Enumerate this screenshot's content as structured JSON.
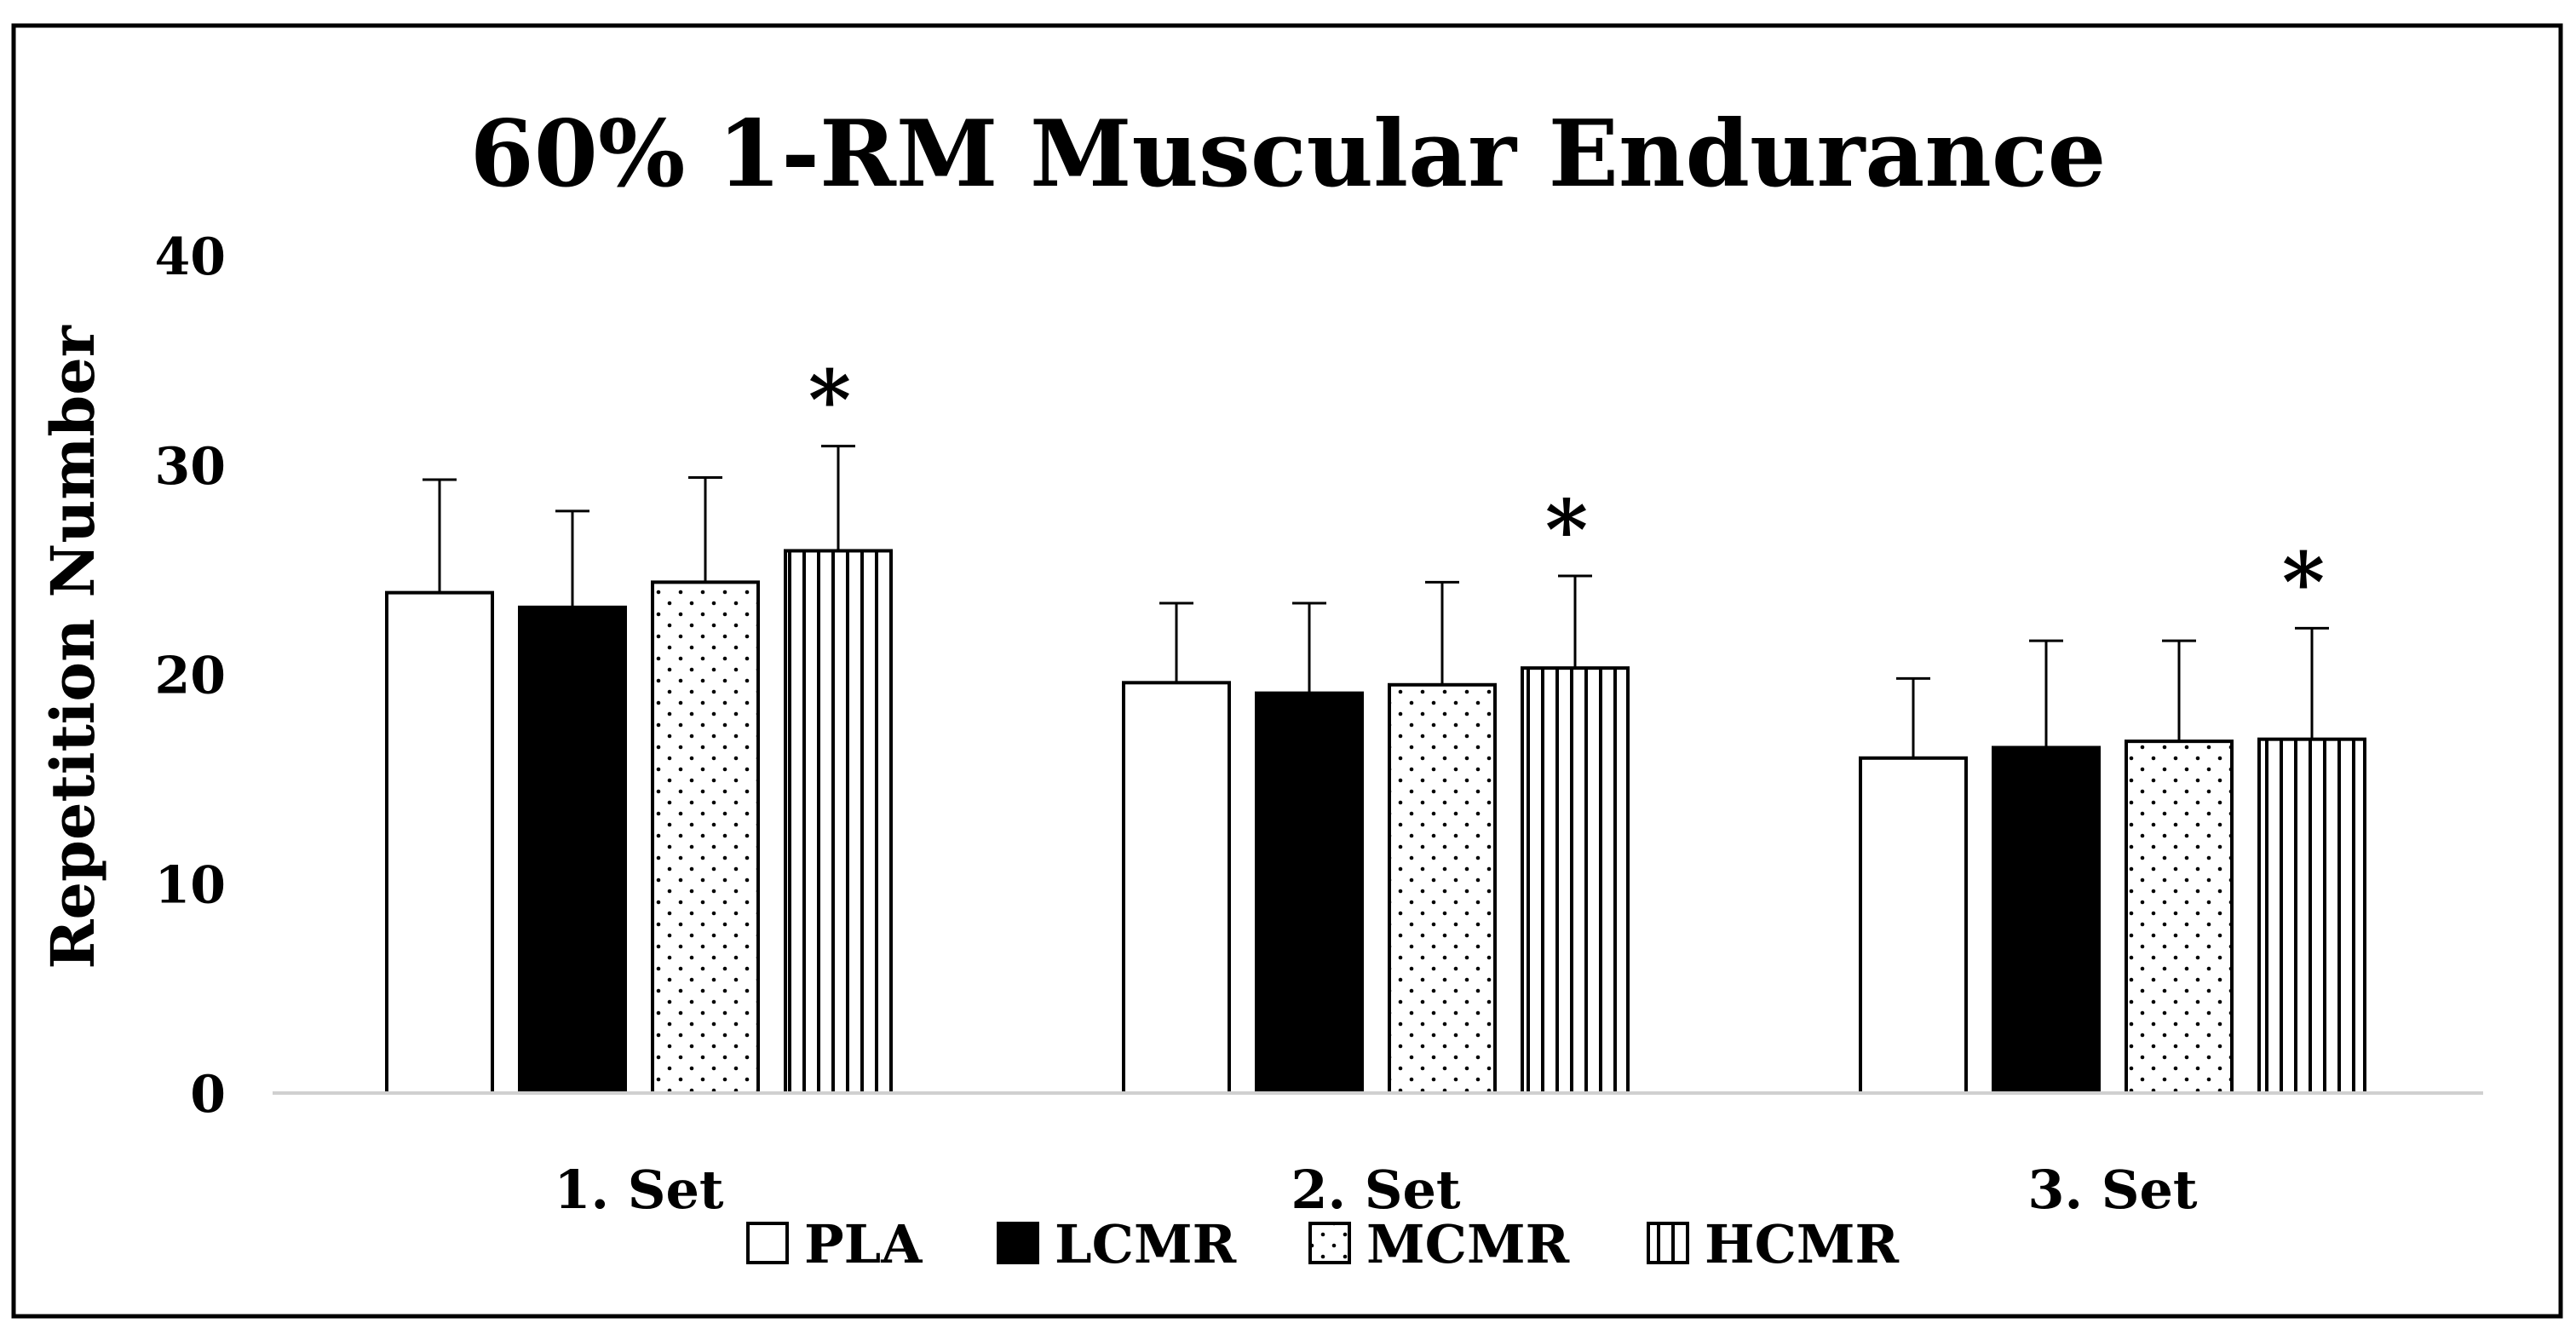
{
  "chart_data": {
    "type": "bar",
    "title": "60% 1-RM Muscular Endurance",
    "ylabel": "Repetition Number",
    "xlabel": "",
    "ylim": [
      0,
      40
    ],
    "yticks": [
      0,
      10,
      20,
      30,
      40
    ],
    "grid": false,
    "legend_position": "bottom",
    "categories": [
      "1. Set",
      "2. Set",
      "3. Set"
    ],
    "series": [
      {
        "name": "PLA",
        "pattern": "white",
        "values": [
          23.9,
          19.6,
          16.0
        ],
        "errors": [
          5.4,
          3.8,
          3.8
        ]
      },
      {
        "name": "LCMR",
        "pattern": "black",
        "values": [
          23.2,
          19.1,
          16.5
        ],
        "errors": [
          4.6,
          4.3,
          5.1
        ]
      },
      {
        "name": "MCMR",
        "pattern": "dotted",
        "values": [
          24.4,
          19.5,
          16.8
        ],
        "errors": [
          5.0,
          4.9,
          4.8
        ]
      },
      {
        "name": "HCMR",
        "pattern": "striped",
        "values": [
          25.9,
          20.3,
          16.9
        ],
        "errors": [
          5.0,
          4.4,
          5.3
        ]
      }
    ],
    "significance_marker": "*",
    "significance_series": "HCMR",
    "significance_categories": [
      "1. Set",
      "2. Set",
      "3. Set"
    ]
  },
  "colors": {
    "bar_outline": "#000000",
    "bar_fill_black": "#000000",
    "bar_fill_white": "#ffffff",
    "axis_line": "#d0d0d0",
    "frame": "#000000"
  }
}
